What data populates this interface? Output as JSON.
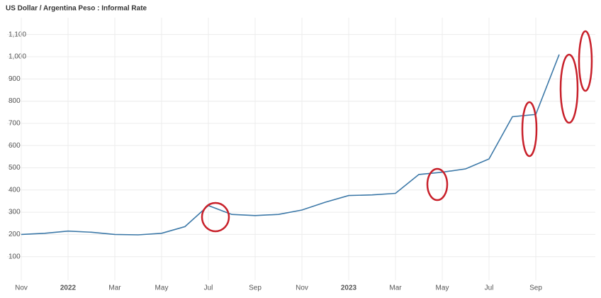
{
  "chart_data": {
    "type": "line",
    "title": "US Dollar / Argentina Peso : Informal Rate",
    "x": [
      "2021-11",
      "2021-12",
      "2022-01",
      "2022-02",
      "2022-03",
      "2022-04",
      "2022-05",
      "2022-06",
      "2022-07",
      "2022-08",
      "2022-09",
      "2022-10",
      "2022-11",
      "2022-12",
      "2023-01",
      "2023-02",
      "2023-03",
      "2023-04",
      "2023-05",
      "2023-06",
      "2023-07",
      "2023-08",
      "2023-09",
      "2023-10"
    ],
    "series": [
      {
        "name": "US Dollar / Argentina Peso",
        "color": "#3d79a8",
        "values": [
          200,
          205,
          215,
          210,
          200,
          198,
          205,
          235,
          330,
          290,
          285,
          290,
          310,
          345,
          375,
          378,
          385,
          470,
          480,
          495,
          540,
          730,
          740,
          1010
        ]
      }
    ],
    "xlim": [
      "2021-11",
      "2023-11"
    ],
    "xticks": [
      {
        "value": "2021-11",
        "label": "Nov"
      },
      {
        "value": "2022-01",
        "label": "2022"
      },
      {
        "value": "2022-03",
        "label": "Mar"
      },
      {
        "value": "2022-05",
        "label": "May"
      },
      {
        "value": "2022-07",
        "label": "Jul"
      },
      {
        "value": "2022-09",
        "label": "Sep"
      },
      {
        "value": "2022-11",
        "label": "Nov"
      },
      {
        "value": "2023-01",
        "label": "2023"
      },
      {
        "value": "2023-03",
        "label": "Mar"
      },
      {
        "value": "2023-05",
        "label": "May"
      },
      {
        "value": "2023-07",
        "label": "Jul"
      },
      {
        "value": "2023-09",
        "label": "Sep"
      }
    ],
    "ylim": [
      0,
      1150
    ],
    "yticks": [
      100,
      200,
      300,
      400,
      500,
      600,
      700,
      800,
      900,
      {
        "value": 1000,
        "label": "1,000"
      },
      {
        "value": 1100,
        "label": "1,100"
      }
    ],
    "grid": true
  }
}
